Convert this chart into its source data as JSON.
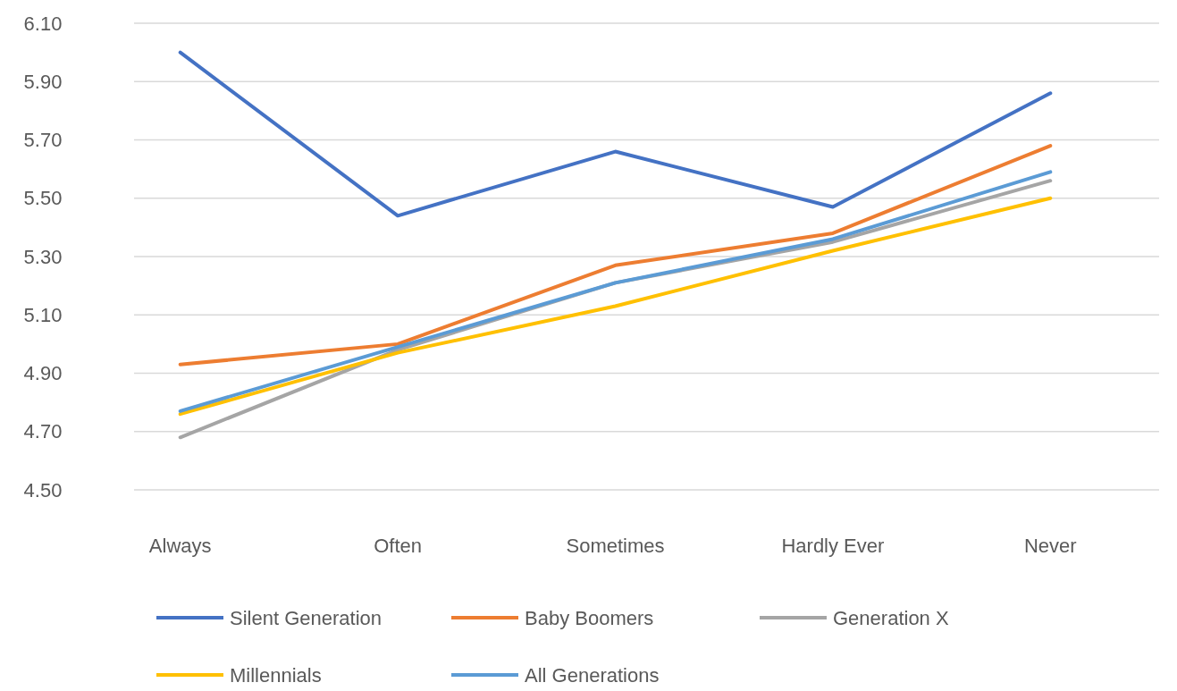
{
  "chart_data": {
    "type": "line",
    "categories": [
      "Always",
      "Often",
      "Sometimes",
      "Hardly Ever",
      "Never"
    ],
    "series": [
      {
        "name": "Silent Generation",
        "color": "#4472c4",
        "values": [
          6.0,
          5.44,
          5.66,
          5.47,
          5.86
        ]
      },
      {
        "name": "Baby Boomers",
        "color": "#ed7d31",
        "values": [
          4.93,
          5.0,
          5.27,
          5.38,
          5.68
        ]
      },
      {
        "name": "Generation X",
        "color": "#a5a5a5",
        "values": [
          4.68,
          4.98,
          5.21,
          5.35,
          5.56
        ]
      },
      {
        "name": "Millennials",
        "color": "#ffc000",
        "values": [
          4.76,
          4.97,
          5.13,
          5.32,
          5.5
        ]
      },
      {
        "name": "All Generations",
        "color": "#5b9bd5",
        "values": [
          4.77,
          4.99,
          5.21,
          5.36,
          5.59
        ]
      }
    ],
    "ylim": [
      4.5,
      6.1
    ],
    "yticks": [
      {
        "value": 4.5,
        "label": "4.50"
      },
      {
        "value": 4.7,
        "label": "4.70"
      },
      {
        "value": 4.9,
        "label": "4.90"
      },
      {
        "value": 5.1,
        "label": "5.10"
      },
      {
        "value": 5.3,
        "label": "5.30"
      },
      {
        "value": 5.5,
        "label": "5.50"
      },
      {
        "value": 5.7,
        "label": "5.70"
      },
      {
        "value": 5.9,
        "label": "5.90"
      },
      {
        "value": 6.1,
        "label": "6.10"
      }
    ],
    "grid": "y",
    "legend": "bottom",
    "marker": "none",
    "line_style": "solid"
  }
}
